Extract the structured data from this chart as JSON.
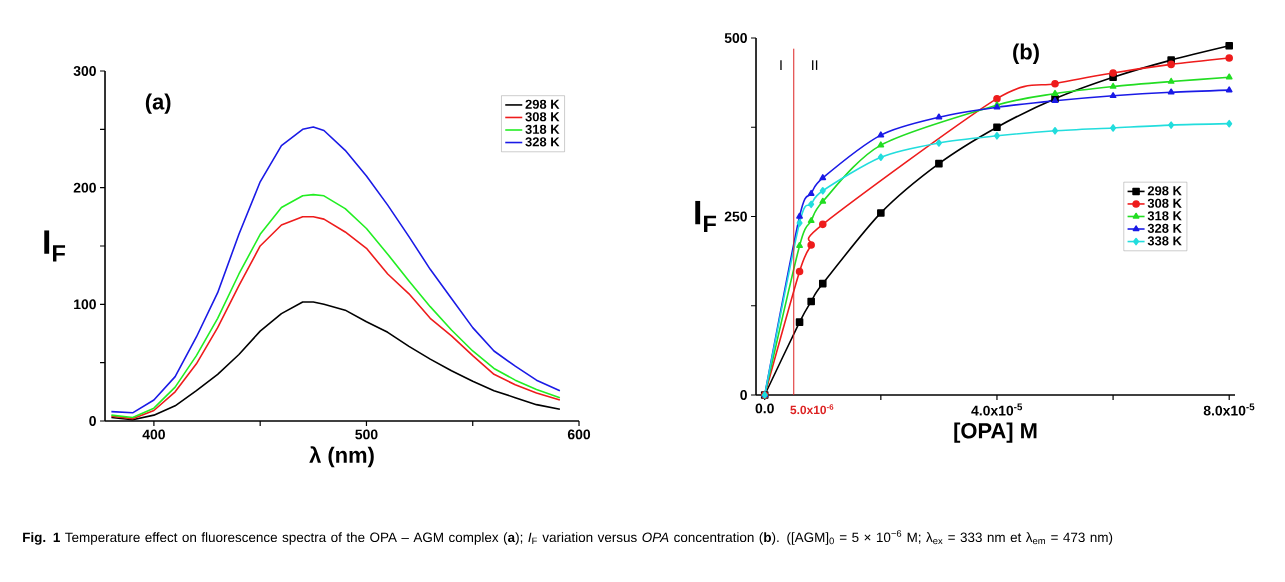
{
  "chart_data": [
    {
      "type": "line",
      "xlabel": "λ (nm)",
      "ylabel": "I$_{F}$",
      "x": [
        380,
        390,
        400,
        410,
        420,
        430,
        440,
        450,
        460,
        470,
        475,
        480,
        490,
        500,
        510,
        520,
        530,
        540,
        550,
        560,
        570,
        580,
        591
      ],
      "series": [
        {
          "name": "298 K",
          "color": "#000000",
          "values": [
            3,
            1,
            5,
            13,
            26,
            40,
            57,
            77,
            92,
            102,
            102,
            100,
            95,
            85,
            76,
            64,
            53,
            43,
            34,
            26,
            20,
            14,
            10
          ]
        },
        {
          "name": "308 K",
          "color": "#ee1c1c",
          "values": [
            4,
            2,
            9,
            25,
            49,
            80,
            116,
            150,
            168,
            175,
            175,
            173,
            162,
            148,
            126,
            109,
            88,
            73,
            56,
            40,
            31,
            24,
            18
          ]
        },
        {
          "name": "318 K",
          "color": "#22ee22",
          "values": [
            5,
            3,
            11,
            29,
            56,
            88,
            126,
            160,
            183,
            193,
            194,
            193,
            182,
            165,
            143,
            120,
            98,
            78,
            60,
            45,
            35,
            27,
            20
          ]
        },
        {
          "name": "328 K",
          "color": "#1a1ae6",
          "values": [
            8,
            7,
            18,
            38,
            72,
            110,
            160,
            205,
            236,
            250,
            252,
            249,
            232,
            210,
            185,
            158,
            130,
            105,
            80,
            60,
            47,
            35,
            26
          ]
        }
      ],
      "xlim": [
        377,
        600
      ],
      "ylim": [
        0,
        300
      ],
      "xticks": [
        400,
        {
          "value": 450,
          "label": null
        },
        500,
        {
          "value": 550,
          "label": null
        },
        600
      ],
      "yticks": [
        0,
        {
          "value": 50,
          "label": null
        },
        100,
        {
          "value": 150,
          "label": null
        },
        200,
        {
          "value": 250,
          "label": null
        },
        300
      ],
      "legend": "top right",
      "grid": false,
      "annotations": [
        "(a)",
        "**Fig. 1** Temperature effect on fluorescence spectra of the OPA – AGM complex (**a**); *I*$_{F}$ variation versus *OPA* concentration (**b**). ([AGM]$_{0}$ = 5 × 10$^{−6}$ M; λ$_{ex}$ = 333 nm et λ$_{em}$ = 473 nm)"
      ]
    },
    {
      "type": "line",
      "xlabel": "[OPA] M",
      "ylabel": "I$_{F}$",
      "x": [
        0,
        6e-06,
        8e-06,
        1e-05,
        2e-05,
        3e-05,
        4e-05,
        5e-05,
        6e-05,
        7e-05,
        8e-05
      ],
      "series": [
        {
          "name": "298 K",
          "color": "#000000",
          "marker": "square",
          "values": [
            0,
            102,
            131,
            156,
            255,
            324,
            375,
            415,
            445,
            469,
            489
          ]
        },
        {
          "name": "308 K",
          "color": "#ee1c1c",
          "marker": "circle",
          "values": [
            0,
            173,
            210,
            239,
            null,
            null,
            415,
            436,
            451,
            463,
            472
          ]
        },
        {
          "name": "318 K",
          "color": "#22dd22",
          "marker": "triangle",
          "values": [
            0,
            209,
            244,
            271,
            350,
            null,
            406,
            422,
            432,
            439,
            445
          ]
        },
        {
          "name": "328 K",
          "color": "#1a1ae6",
          "marker": "triangle",
          "values": [
            0,
            250,
            282,
            304,
            364,
            389,
            403,
            412,
            419,
            424,
            427
          ]
        },
        {
          "name": "338 K",
          "color": "#22dddd",
          "marker": "diamond",
          "values": [
            0,
            241,
            267,
            286,
            333,
            353,
            363,
            370,
            374,
            378,
            380
          ]
        }
      ],
      "xlim": [
        -1.5e-06,
        8.1e-05
      ],
      "ylim": [
        0,
        500
      ],
      "xticks": [
        {
          "value": 0,
          "label": "0.0"
        },
        {
          "value": 2e-05,
          "label": null
        },
        {
          "value": 4e-05,
          "label": "4.0x10$^{-5}$"
        },
        {
          "value": 6e-05,
          "label": null
        },
        {
          "value": 8e-05,
          "label": "8.0x10$^{-5}$"
        }
      ],
      "yticks": [
        0,
        {
          "value": 125,
          "label": null
        },
        250,
        {
          "value": 375,
          "label": null
        },
        500
      ],
      "legend": "right",
      "grid": false,
      "ref_lines": [
        {
          "axis": "x",
          "value": 5e-06,
          "label": "5.0x10$^{-6}$",
          "color": "#dd2222"
        }
      ],
      "annotations": [
        "(b)",
        "I",
        "II"
      ]
    }
  ]
}
